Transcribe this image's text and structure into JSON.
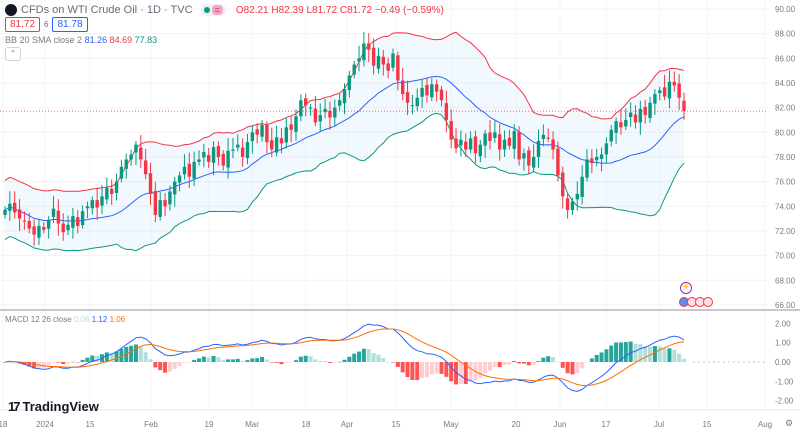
{
  "header": {
    "symbol_title": "CFDs on WTI Crude Oil · 1D · TVC",
    "ohlc": {
      "o_label": "O",
      "o": "82.21",
      "h_label": "H",
      "h": "82.39",
      "l_label": "L",
      "l": "81.72",
      "c_label": "C",
      "c": "81.72",
      "change": "−0.49 (−0.59%)"
    },
    "sell_price": "81.72",
    "spread": "6",
    "buy_price": "81.78",
    "bb_legend": {
      "name": "BB 20 SMA close 2",
      "basis": "81.26",
      "upper": "84.69",
      "lower": "77.83"
    },
    "macd_legend": {
      "name": "MACD 12 26 close",
      "hist": "0.06",
      "macd": "1.12",
      "signal": "1.06"
    }
  },
  "brand": "TradingView",
  "colors": {
    "up": "#089981",
    "down": "#f23645",
    "basis": "#2962ff",
    "upper": "#f23645",
    "lower": "#089981",
    "macd": "#2962ff",
    "signal": "#ff6d00"
  },
  "chart_data": {
    "type": "candlestick",
    "title": "CFDs on WTI Crude Oil · 1D · TVC",
    "price_axis": {
      "range": [
        66,
        90
      ],
      "ticks": [
        "90.00",
        "88.00",
        "86.00",
        "84.00",
        "82.00",
        "80.00",
        "78.00",
        "76.00",
        "74.00",
        "72.00",
        "70.00",
        "68.00",
        "66.00"
      ]
    },
    "macd_axis": {
      "range": [
        -2.4,
        2.4
      ],
      "ticks": [
        "2.00",
        "1.00",
        "0.00",
        "-1.00",
        "-2.00"
      ]
    },
    "time_ticks": [
      "18",
      "2024",
      "15",
      "Feb",
      "19",
      "Mar",
      "18",
      "Apr",
      "15",
      "May",
      "20",
      "Jun",
      "17",
      "Jul",
      "15",
      "Aug"
    ],
    "last_price": 81.72,
    "closes": [
      73.7,
      74.2,
      73.5,
      73.0,
      72.8,
      72.2,
      71.7,
      72.4,
      72.1,
      72.9,
      73.8,
      72.6,
      71.9,
      72.5,
      73.2,
      72.4,
      73.6,
      74.0,
      74.5,
      73.9,
      74.8,
      75.5,
      75.0,
      76.0,
      77.2,
      77.8,
      78.2,
      79.0,
      77.8,
      76.6,
      75.0,
      73.3,
      74.5,
      74.0,
      75.2,
      76.0,
      76.5,
      77.2,
      76.4,
      77.6,
      77.8,
      78.4,
      77.6,
      78.8,
      78.0,
      77.3,
      78.5,
      78.6,
      79.0,
      78.0,
      79.2,
      80.0,
      79.8,
      80.6,
      79.2,
      78.6,
      79.6,
      79.1,
      80.4,
      80.2,
      81.3,
      82.6,
      82.2,
      82.0,
      80.8,
      81.4,
      81.9,
      81.2,
      82.0,
      82.6,
      83.5,
      84.6,
      85.5,
      86.0,
      87.2,
      86.7,
      85.4,
      86.2,
      85.5,
      85.0,
      86.4,
      84.2,
      83.1,
      82.4,
      82.2,
      82.8,
      83.6,
      83.0,
      83.9,
      83.3,
      82.6,
      81.0,
      79.4,
      78.7,
      79.4,
      78.6,
      79.5,
      78.3,
      79.0,
      79.9,
      79.3,
      80.0,
      78.6,
      79.4,
      78.9,
      80.1,
      77.8,
      78.3,
      77.3,
      78.0,
      79.3,
      79.8,
      79.5,
      78.6,
      76.5,
      74.8,
      73.7,
      74.4,
      75.0,
      76.4,
      77.8,
      77.5,
      78.0,
      78.2,
      79.1,
      80.2,
      80.9,
      80.4,
      81.0,
      81.6,
      80.8,
      81.9,
      81.4,
      82.4,
      83.1,
      83.4,
      82.9,
      84.1,
      83.8,
      82.8,
      81.72
    ],
    "indicators": [
      "Bollinger Bands (20, SMA, close, 2)",
      "MACD (12, 26, close, 9)"
    ]
  }
}
